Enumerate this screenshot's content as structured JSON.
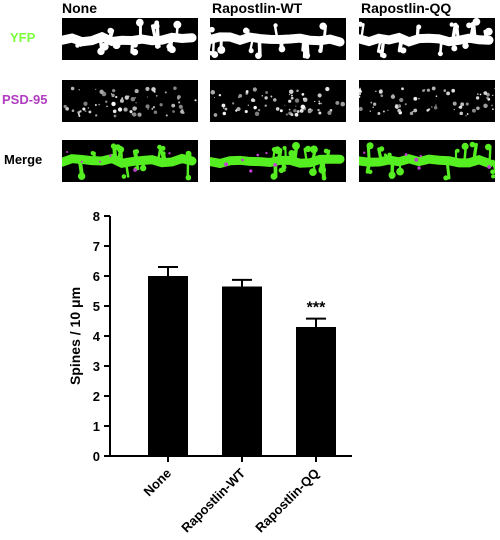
{
  "panels": {
    "columns": [
      "None",
      "Rapostlin-WT",
      "Rapostlin-QQ"
    ],
    "rows": [
      {
        "label": "YFP",
        "color": "#7cff3a"
      },
      {
        "label": "PSD-95",
        "color": "#b03cc0"
      },
      {
        "label": "Merge",
        "color": "#000000"
      }
    ],
    "yfp_color": "#ffffff",
    "merge_green": "#55ee20",
    "merge_magenta": "#c040d0"
  },
  "chart_data": {
    "type": "bar",
    "categories": [
      "None",
      "Rapostlin-WT",
      "Rapostlin-QQ"
    ],
    "values": [
      6.0,
      5.65,
      4.3
    ],
    "errors": [
      0.3,
      0.22,
      0.28
    ],
    "ylabel": "Spines / 10 μm",
    "ylim": [
      0,
      8
    ],
    "yticks": [
      "0",
      "1",
      "2",
      "3",
      "4",
      "5",
      "6",
      "7",
      "8"
    ],
    "annotations": [
      {
        "category": "Rapostlin-QQ",
        "text": "***"
      }
    ],
    "bar_color": "#000000",
    "grid": false
  }
}
